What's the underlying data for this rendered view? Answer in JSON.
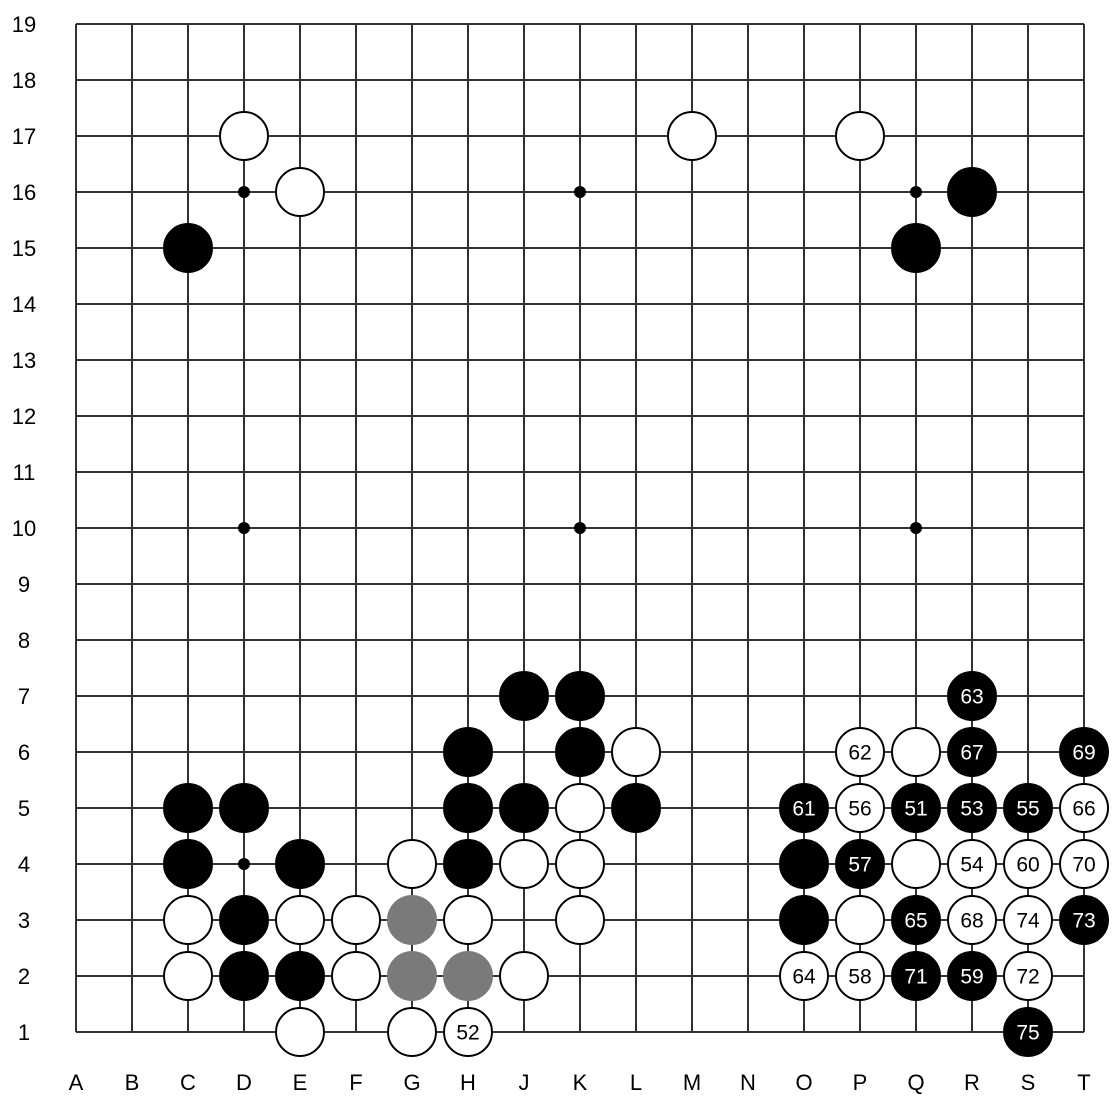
{
  "board": {
    "size": 19,
    "columns": [
      "A",
      "B",
      "C",
      "D",
      "E",
      "F",
      "G",
      "H",
      "J",
      "K",
      "L",
      "M",
      "N",
      "O",
      "P",
      "Q",
      "R",
      "S",
      "T"
    ],
    "rows": [
      "1",
      "2",
      "3",
      "4",
      "5",
      "6",
      "7",
      "8",
      "9",
      "10",
      "11",
      "12",
      "13",
      "14",
      "15",
      "16",
      "17",
      "18",
      "19"
    ],
    "star_points": [
      "D4",
      "K4",
      "Q4",
      "D10",
      "K10",
      "Q10",
      "D16",
      "K16",
      "Q16"
    ],
    "colors": {
      "line": "#333333",
      "black_stone": "#000000",
      "white_stone": "#ffffff",
      "gray_stone": "#7a7a7a"
    },
    "stones": [
      {
        "point": "D17",
        "color": "white"
      },
      {
        "point": "M17",
        "color": "white"
      },
      {
        "point": "P17",
        "color": "white"
      },
      {
        "point": "E16",
        "color": "white"
      },
      {
        "point": "R16",
        "color": "black"
      },
      {
        "point": "C15",
        "color": "black"
      },
      {
        "point": "Q15",
        "color": "black"
      },
      {
        "point": "J7",
        "color": "black"
      },
      {
        "point": "K7",
        "color": "black"
      },
      {
        "point": "R7",
        "color": "black",
        "label": "63"
      },
      {
        "point": "H6",
        "color": "black"
      },
      {
        "point": "K6",
        "color": "black"
      },
      {
        "point": "L6",
        "color": "white"
      },
      {
        "point": "P6",
        "color": "white",
        "label": "62"
      },
      {
        "point": "Q6",
        "color": "white"
      },
      {
        "point": "R6",
        "color": "black",
        "label": "67"
      },
      {
        "point": "T6",
        "color": "black",
        "label": "69"
      },
      {
        "point": "C5",
        "color": "black"
      },
      {
        "point": "D5",
        "color": "black"
      },
      {
        "point": "H5",
        "color": "black"
      },
      {
        "point": "J5",
        "color": "black"
      },
      {
        "point": "K5",
        "color": "white"
      },
      {
        "point": "L5",
        "color": "black"
      },
      {
        "point": "O5",
        "color": "black",
        "label": "61"
      },
      {
        "point": "P5",
        "color": "white",
        "label": "56"
      },
      {
        "point": "Q5",
        "color": "black",
        "label": "51"
      },
      {
        "point": "R5",
        "color": "black",
        "label": "53"
      },
      {
        "point": "S5",
        "color": "black",
        "label": "55"
      },
      {
        "point": "T5",
        "color": "white",
        "label": "66"
      },
      {
        "point": "C4",
        "color": "black"
      },
      {
        "point": "E4",
        "color": "black"
      },
      {
        "point": "G4",
        "color": "white"
      },
      {
        "point": "H4",
        "color": "black"
      },
      {
        "point": "J4",
        "color": "white"
      },
      {
        "point": "K4",
        "color": "white"
      },
      {
        "point": "O4",
        "color": "black"
      },
      {
        "point": "P4",
        "color": "black",
        "label": "57"
      },
      {
        "point": "Q4",
        "color": "white"
      },
      {
        "point": "R4",
        "color": "white",
        "label": "54"
      },
      {
        "point": "S4",
        "color": "white",
        "label": "60"
      },
      {
        "point": "T4",
        "color": "white",
        "label": "70"
      },
      {
        "point": "C3",
        "color": "white"
      },
      {
        "point": "D3",
        "color": "black"
      },
      {
        "point": "E3",
        "color": "white"
      },
      {
        "point": "F3",
        "color": "white"
      },
      {
        "point": "G3",
        "color": "gray"
      },
      {
        "point": "H3",
        "color": "white"
      },
      {
        "point": "K3",
        "color": "white"
      },
      {
        "point": "O3",
        "color": "black"
      },
      {
        "point": "P3",
        "color": "white"
      },
      {
        "point": "Q3",
        "color": "black",
        "label": "65"
      },
      {
        "point": "R3",
        "color": "white",
        "label": "68"
      },
      {
        "point": "S3",
        "color": "white",
        "label": "74"
      },
      {
        "point": "T3",
        "color": "black",
        "label": "73"
      },
      {
        "point": "C2",
        "color": "white"
      },
      {
        "point": "D2",
        "color": "black"
      },
      {
        "point": "E2",
        "color": "black"
      },
      {
        "point": "F2",
        "color": "white"
      },
      {
        "point": "G2",
        "color": "gray"
      },
      {
        "point": "H2",
        "color": "gray"
      },
      {
        "point": "J2",
        "color": "white"
      },
      {
        "point": "O2",
        "color": "white",
        "label": "64"
      },
      {
        "point": "P2",
        "color": "white",
        "label": "58"
      },
      {
        "point": "Q2",
        "color": "black",
        "label": "71"
      },
      {
        "point": "R2",
        "color": "black",
        "label": "59"
      },
      {
        "point": "S2",
        "color": "white",
        "label": "72"
      },
      {
        "point": "E1",
        "color": "white"
      },
      {
        "point": "G1",
        "color": "white"
      },
      {
        "point": "H1",
        "color": "white",
        "label": "52"
      },
      {
        "point": "S1",
        "color": "black",
        "label": "75"
      }
    ]
  }
}
